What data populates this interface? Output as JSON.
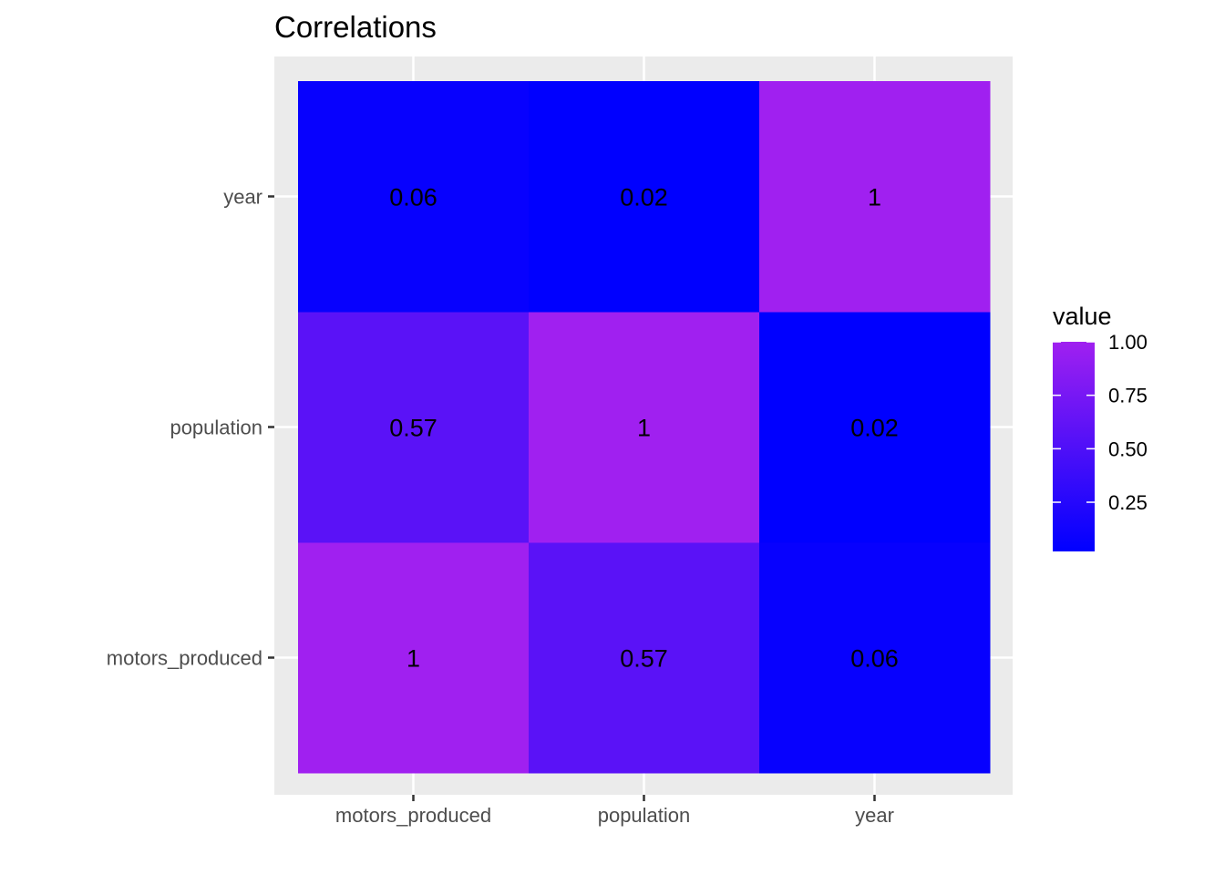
{
  "chart_data": {
    "type": "heatmap",
    "title": "Correlations",
    "x_categories": [
      "motors_produced",
      "population",
      "year"
    ],
    "y_categories": [
      "motors_produced",
      "population",
      "year"
    ],
    "cells": [
      {
        "x": "motors_produced",
        "y": "motors_produced",
        "value": 1,
        "label": "1"
      },
      {
        "x": "population",
        "y": "motors_produced",
        "value": 0.57,
        "label": "0.57"
      },
      {
        "x": "year",
        "y": "motors_produced",
        "value": 0.06,
        "label": "0.06"
      },
      {
        "x": "motors_produced",
        "y": "population",
        "value": 0.57,
        "label": "0.57"
      },
      {
        "x": "population",
        "y": "population",
        "value": 1,
        "label": "1"
      },
      {
        "x": "year",
        "y": "population",
        "value": 0.02,
        "label": "0.02"
      },
      {
        "x": "motors_produced",
        "y": "year",
        "value": 0.06,
        "label": "0.06"
      },
      {
        "x": "population",
        "y": "year",
        "value": 0.02,
        "label": "0.02"
      },
      {
        "x": "year",
        "y": "year",
        "value": 1,
        "label": "1"
      }
    ],
    "legend": {
      "title": "value",
      "position": "right",
      "breaks": [
        1.0,
        0.75,
        0.5,
        0.25
      ],
      "labels": [
        "1.00",
        "0.75",
        "0.50",
        "0.25"
      ],
      "range": [
        0.02,
        1.0
      ],
      "low_color": "#0000ff",
      "high_color": "#a020f0"
    },
    "xlabel": "",
    "ylabel": "",
    "grid": true,
    "panel_background": "#ebebeb",
    "grid_color": "#ffffff"
  }
}
